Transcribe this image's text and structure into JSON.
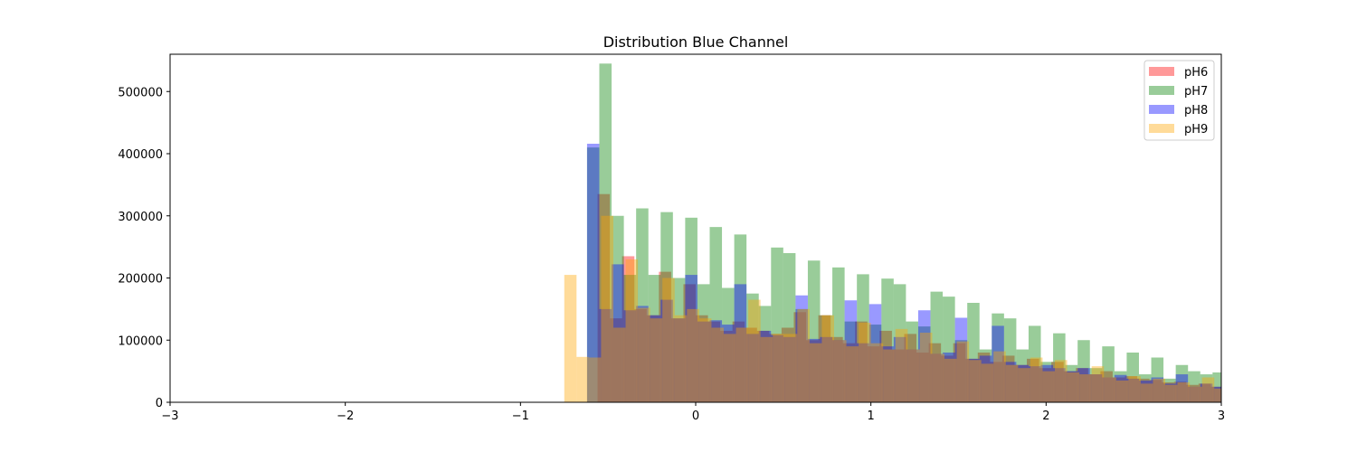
{
  "chart_data": {
    "type": "bar",
    "title": "Distribution Blue Channel",
    "xlabel": "",
    "ylabel": "",
    "xlim": [
      -3,
      3
    ],
    "ylim": [
      0,
      560000
    ],
    "x_ticks": [
      -3,
      -2,
      -1,
      0,
      1,
      2,
      3
    ],
    "x_tick_labels": [
      "−3",
      "−2",
      "−1",
      "0",
      "1",
      "2",
      "3"
    ],
    "y_ticks": [
      0,
      100000,
      200000,
      300000,
      400000,
      500000
    ],
    "y_tick_labels": [
      "0",
      "100000",
      "200000",
      "300000",
      "400000",
      "500000"
    ],
    "grid": false,
    "legend_position": "top-right",
    "alpha": 0.4,
    "series": [
      {
        "name": "pH6",
        "color": "#ff0000",
        "bin_width": 0.07,
        "bins": [
          [
            -0.62,
            0
          ],
          [
            -0.56,
            335000
          ],
          [
            -0.49,
            135000
          ],
          [
            -0.42,
            235000
          ],
          [
            -0.35,
            150000
          ],
          [
            -0.28,
            140000
          ],
          [
            -0.21,
            210000
          ],
          [
            -0.14,
            135000
          ],
          [
            -0.07,
            190000
          ],
          [
            0.0,
            140000
          ],
          [
            0.07,
            130000
          ],
          [
            0.14,
            115000
          ],
          [
            0.21,
            130000
          ],
          [
            0.28,
            120000
          ],
          [
            0.35,
            115000
          ],
          [
            0.42,
            110000
          ],
          [
            0.49,
            120000
          ],
          [
            0.56,
            145000
          ],
          [
            0.63,
            100000
          ],
          [
            0.7,
            140000
          ],
          [
            0.77,
            105000
          ],
          [
            0.84,
            95000
          ],
          [
            0.91,
            130000
          ],
          [
            0.98,
            90000
          ],
          [
            1.05,
            115000
          ],
          [
            1.12,
            85000
          ],
          [
            1.19,
            110000
          ],
          [
            1.26,
            80000
          ],
          [
            1.33,
            95000
          ],
          [
            1.4,
            75000
          ],
          [
            1.47,
            95000
          ],
          [
            1.54,
            70000
          ],
          [
            1.61,
            80000
          ],
          [
            1.68,
            65000
          ],
          [
            1.75,
            75000
          ],
          [
            1.82,
            60000
          ],
          [
            1.89,
            70000
          ],
          [
            1.96,
            55000
          ],
          [
            2.03,
            65000
          ],
          [
            2.1,
            50000
          ],
          [
            2.17,
            55000
          ],
          [
            2.24,
            45000
          ],
          [
            2.31,
            50000
          ],
          [
            2.38,
            40000
          ],
          [
            2.45,
            42000
          ],
          [
            2.52,
            38000
          ],
          [
            2.59,
            36000
          ],
          [
            2.66,
            32000
          ],
          [
            2.73,
            33000
          ],
          [
            2.8,
            28000
          ],
          [
            2.87,
            30000
          ],
          [
            2.94,
            25000
          ]
        ]
      },
      {
        "name": "pH7",
        "color": "#008000",
        "bin_width": 0.07,
        "bins": [
          [
            -0.62,
            410000
          ],
          [
            -0.55,
            545000
          ],
          [
            -0.48,
            300000
          ],
          [
            -0.41,
            205000
          ],
          [
            -0.34,
            312000
          ],
          [
            -0.27,
            205000
          ],
          [
            -0.2,
            306000
          ],
          [
            -0.13,
            200000
          ],
          [
            -0.06,
            297000
          ],
          [
            0.01,
            190000
          ],
          [
            0.08,
            282000
          ],
          [
            0.15,
            184000
          ],
          [
            0.22,
            270000
          ],
          [
            0.29,
            175000
          ],
          [
            0.36,
            155000
          ],
          [
            0.43,
            249000
          ],
          [
            0.5,
            240000
          ],
          [
            0.57,
            150000
          ],
          [
            0.64,
            228000
          ],
          [
            0.71,
            140000
          ],
          [
            0.78,
            217000
          ],
          [
            0.85,
            130000
          ],
          [
            0.92,
            206000
          ],
          [
            0.99,
            125000
          ],
          [
            1.06,
            199000
          ],
          [
            1.13,
            190000
          ],
          [
            1.2,
            130000
          ],
          [
            1.27,
            122000
          ],
          [
            1.34,
            178000
          ],
          [
            1.41,
            170000
          ],
          [
            1.48,
            100000
          ],
          [
            1.55,
            160000
          ],
          [
            1.62,
            85000
          ],
          [
            1.69,
            143000
          ],
          [
            1.76,
            135000
          ],
          [
            1.83,
            85000
          ],
          [
            1.9,
            123000
          ],
          [
            1.97,
            65000
          ],
          [
            2.04,
            111000
          ],
          [
            2.11,
            60000
          ],
          [
            2.18,
            100000
          ],
          [
            2.25,
            55000
          ],
          [
            2.32,
            90000
          ],
          [
            2.39,
            50000
          ],
          [
            2.46,
            80000
          ],
          [
            2.53,
            45000
          ],
          [
            2.6,
            72000
          ],
          [
            2.67,
            38000
          ],
          [
            2.74,
            60000
          ],
          [
            2.81,
            50000
          ],
          [
            2.88,
            45000
          ],
          [
            2.95,
            48000
          ]
        ]
      },
      {
        "name": "pH8",
        "color": "#0000ff",
        "bin_width": 0.07,
        "bins": [
          [
            -0.62,
            416000
          ],
          [
            -0.55,
            150000
          ],
          [
            -0.48,
            222000
          ],
          [
            -0.41,
            148000
          ],
          [
            -0.34,
            155000
          ],
          [
            -0.27,
            140000
          ],
          [
            -0.2,
            165000
          ],
          [
            -0.13,
            135000
          ],
          [
            -0.06,
            205000
          ],
          [
            0.01,
            130000
          ],
          [
            0.08,
            132000
          ],
          [
            0.15,
            125000
          ],
          [
            0.22,
            190000
          ],
          [
            0.29,
            110000
          ],
          [
            0.36,
            115000
          ],
          [
            0.43,
            108000
          ],
          [
            0.5,
            105000
          ],
          [
            0.57,
            172000
          ],
          [
            0.64,
            102000
          ],
          [
            0.71,
            105000
          ],
          [
            0.78,
            100000
          ],
          [
            0.85,
            164000
          ],
          [
            0.92,
            95000
          ],
          [
            0.99,
            158000
          ],
          [
            1.06,
            90000
          ],
          [
            1.13,
            105000
          ],
          [
            1.2,
            85000
          ],
          [
            1.27,
            148000
          ],
          [
            1.34,
            78000
          ],
          [
            1.41,
            80000
          ],
          [
            1.48,
            136000
          ],
          [
            1.55,
            70000
          ],
          [
            1.62,
            75000
          ],
          [
            1.69,
            123000
          ],
          [
            1.76,
            65000
          ],
          [
            1.83,
            60000
          ],
          [
            1.9,
            58000
          ],
          [
            1.97,
            60000
          ],
          [
            2.04,
            55000
          ],
          [
            2.11,
            50000
          ],
          [
            2.18,
            55000
          ],
          [
            2.25,
            45000
          ],
          [
            2.32,
            40000
          ],
          [
            2.39,
            44000
          ],
          [
            2.46,
            38000
          ],
          [
            2.53,
            35000
          ],
          [
            2.6,
            40000
          ],
          [
            2.67,
            30000
          ],
          [
            2.74,
            45000
          ],
          [
            2.81,
            25000
          ],
          [
            2.88,
            30000
          ],
          [
            2.95,
            25000
          ]
        ]
      },
      {
        "name": "pH9",
        "color": "#ffa500",
        "bin_width": 0.07,
        "bins": [
          [
            -0.75,
            205000
          ],
          [
            -0.68,
            73000
          ],
          [
            -0.61,
            72000
          ],
          [
            -0.54,
            300000
          ],
          [
            -0.47,
            120000
          ],
          [
            -0.4,
            230000
          ],
          [
            -0.33,
            152000
          ],
          [
            -0.26,
            135000
          ],
          [
            -0.19,
            200000
          ],
          [
            -0.12,
            140000
          ],
          [
            -0.05,
            150000
          ],
          [
            0.02,
            135000
          ],
          [
            0.09,
            120000
          ],
          [
            0.16,
            110000
          ],
          [
            0.23,
            120000
          ],
          [
            0.3,
            165000
          ],
          [
            0.37,
            105000
          ],
          [
            0.44,
            110000
          ],
          [
            0.51,
            110000
          ],
          [
            0.58,
            150000
          ],
          [
            0.65,
            95000
          ],
          [
            0.72,
            140000
          ],
          [
            0.79,
            100000
          ],
          [
            0.86,
            90000
          ],
          [
            0.93,
            128000
          ],
          [
            1.0,
            95000
          ],
          [
            1.07,
            85000
          ],
          [
            1.14,
            118000
          ],
          [
            1.21,
            85000
          ],
          [
            1.28,
            112000
          ],
          [
            1.35,
            78000
          ],
          [
            1.42,
            70000
          ],
          [
            1.49,
            98000
          ],
          [
            1.56,
            68000
          ],
          [
            1.63,
            62000
          ],
          [
            1.7,
            82000
          ],
          [
            1.77,
            60000
          ],
          [
            1.84,
            55000
          ],
          [
            1.91,
            72000
          ],
          [
            1.98,
            50000
          ],
          [
            2.05,
            68000
          ],
          [
            2.12,
            48000
          ],
          [
            2.19,
            45000
          ],
          [
            2.26,
            58000
          ],
          [
            2.33,
            40000
          ],
          [
            2.4,
            35000
          ],
          [
            2.47,
            42000
          ],
          [
            2.54,
            30000
          ],
          [
            2.61,
            38000
          ],
          [
            2.68,
            28000
          ],
          [
            2.75,
            32000
          ],
          [
            2.82,
            25000
          ],
          [
            2.89,
            40000
          ],
          [
            2.96,
            22000
          ]
        ]
      }
    ]
  }
}
